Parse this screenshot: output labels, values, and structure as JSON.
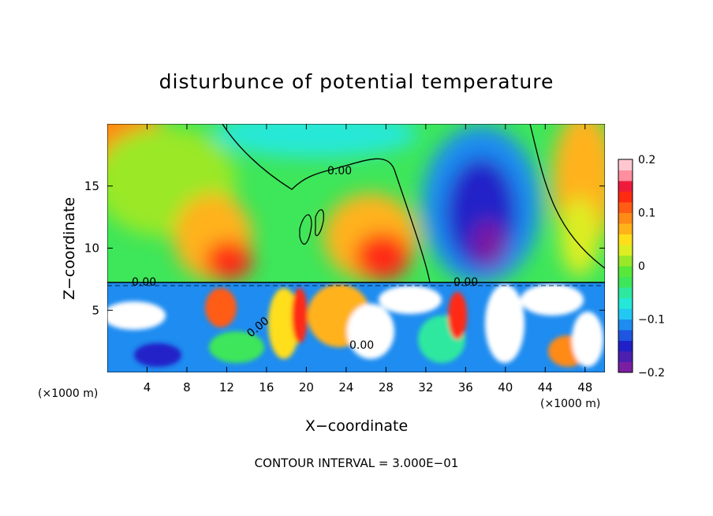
{
  "chart_data": {
    "type": "heatmap",
    "title": "disturbunce of potential temperature",
    "xlabel": "X−coordinate",
    "ylabel": "Z−coordinate",
    "x_unit_left": "(×1000 m)",
    "x_unit_right": "(×1000 m)",
    "footer": "CONTOUR INTERVAL = 3.000E−01",
    "x_ticks": [
      4,
      8,
      12,
      16,
      20,
      24,
      28,
      32,
      36,
      40,
      44,
      48
    ],
    "y_ticks": [
      5,
      10,
      15
    ],
    "xlim": [
      0,
      50
    ],
    "ylim": [
      0,
      20
    ],
    "colorbar": {
      "ticks": [
        "0.2",
        "0.1",
        "0",
        "−0.1",
        "−0.2"
      ],
      "tick_values": [
        0.2,
        0.1,
        0,
        -0.1,
        -0.2
      ],
      "range": [
        -0.2,
        0.2
      ],
      "colors": [
        "#7a1fa2",
        "#4b1fb0",
        "#2020c8",
        "#1f55e0",
        "#1e8cf0",
        "#22c8f2",
        "#25e8d8",
        "#2ee8a0",
        "#3ee65a",
        "#58e83a",
        "#9ae828",
        "#dcee22",
        "#ffde1a",
        "#ffb21a",
        "#ff8a16",
        "#ff5c14",
        "#ff2a12",
        "#ee1c3a",
        "#ff8e9e",
        "#ffc8d0"
      ]
    },
    "contour_labels": [
      "0.00",
      "0.00",
      "0.00",
      "0.00",
      "0.00"
    ],
    "layers": {
      "upper": {
        "z_range": [
          7.2,
          20
        ],
        "description_source": "smooth color field"
      },
      "lower": {
        "z_range": [
          0,
          7.2
        ],
        "description_source": "turbulent field"
      }
    }
  }
}
